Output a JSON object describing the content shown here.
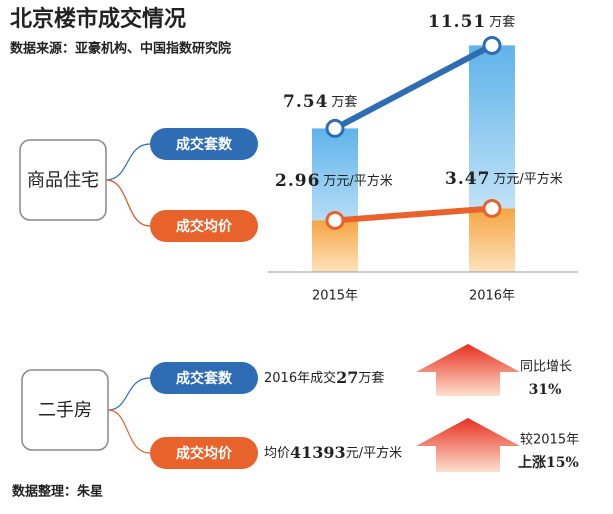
{
  "title": "北京楼市成交情况",
  "source": "数据来源：亚豪机构、中国指数研究院",
  "new_homes": {
    "label": "商品住宅"
  },
  "chart_data": {
    "type": "line",
    "categories": [
      "2015年",
      "2016年"
    ],
    "series": [
      {
        "name": "成交套数",
        "unit": "万套",
        "color": "#2e6db4",
        "bar_color": "#7cc2ee",
        "values": [
          7.54,
          11.51
        ]
      },
      {
        "name": "成交均价",
        "unit": "万元/平方米",
        "color": "#e8622c",
        "bar_color": "#f8ab4e",
        "values": [
          2.96,
          3.47
        ]
      }
    ]
  },
  "second_hand": {
    "label": "二手房",
    "tags": [
      "成交套数",
      "成交均价"
    ],
    "volume_prefix": "2016年成交",
    "volume": 27,
    "volume_unit": "万套",
    "volume_change_label": "同比增长",
    "volume_change": "31%",
    "price_prefix": "均价",
    "price": 41393,
    "price_unit": "元/平方米",
    "price_change_label": "较2015年",
    "price_change": "上涨15%"
  },
  "footer": "数据整理：朱星"
}
